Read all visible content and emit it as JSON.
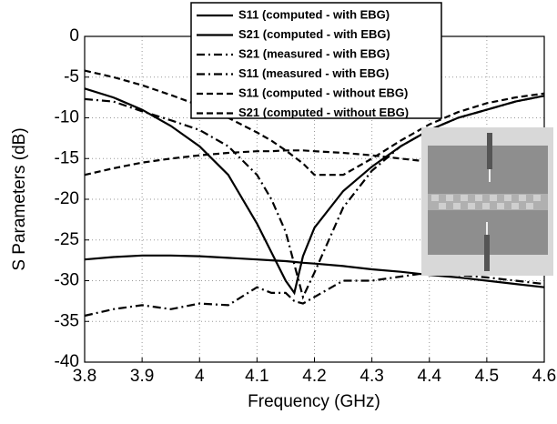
{
  "chart_data": {
    "type": "line",
    "xlabel": "Frequency (GHz)",
    "ylabel": "S Parameters (dB)",
    "x": [
      3.8,
      3.85,
      3.9,
      3.95,
      4.0,
      4.05,
      4.1,
      4.125,
      4.15,
      4.165,
      4.18,
      4.2,
      4.25,
      4.3,
      4.35,
      4.4,
      4.45,
      4.5,
      4.55,
      4.6
    ],
    "xlim": [
      3.8,
      4.6
    ],
    "xticks": [
      3.8,
      3.9,
      4,
      4.1,
      4.2,
      4.3,
      4.4,
      4.5,
      4.6
    ],
    "ylim": [
      -40,
      0
    ],
    "yticks": [
      0,
      -5,
      -10,
      -15,
      -20,
      -25,
      -30,
      -35,
      -40
    ],
    "grid": true,
    "legend": "top-center",
    "series": [
      {
        "name": "S11 (computed - with EBG)",
        "color": "#000000",
        "style": "solid",
        "values": [
          -6.4,
          -7.5,
          -9,
          -11,
          -13.5,
          -17,
          -23,
          -26.5,
          -30,
          -31.5,
          -27,
          -23.5,
          -19,
          -16,
          -13.5,
          -11.5,
          -10,
          -9,
          -8,
          -7.3
        ]
      },
      {
        "name": "S21 (computed - with EBG)",
        "color": "#000000",
        "style": "solid",
        "values": [
          -27.4,
          -27.1,
          -26.9,
          -26.9,
          -27,
          -27.2,
          -27.4,
          -27.5,
          -27.6,
          -27.7,
          -27.8,
          -27.9,
          -28.2,
          -28.6,
          -28.9,
          -29.3,
          -29.6,
          -30,
          -30.4,
          -30.8
        ]
      },
      {
        "name": "S21 (measured - with EBG)",
        "color": "#000000",
        "style": "dashdot",
        "values": [
          -34.3,
          -33.5,
          -33,
          -33.5,
          -32.8,
          -33,
          -30.8,
          -31.5,
          -31.5,
          -32.5,
          -32.8,
          -32,
          -30,
          -30,
          -29.5,
          -29,
          -29.3,
          -29.6,
          -30,
          -30.4
        ]
      },
      {
        "name": "S11 (measured - with EBG)",
        "color": "#000000",
        "style": "dashdot",
        "values": [
          -7.7,
          -8,
          -9.2,
          -10.3,
          -11.5,
          -13.5,
          -17,
          -20,
          -24,
          -28,
          -32,
          -29,
          -21,
          -16.5,
          -13.5,
          -11.5,
          -10,
          -9,
          -8,
          -7.3
        ]
      },
      {
        "name": "S11 (computed - without EBG)",
        "color": "#000000",
        "style": "dashed",
        "values": [
          -4.2,
          -5,
          -6,
          -7.2,
          -8.5,
          -10,
          -11.8,
          -12.8,
          -14,
          -14.8,
          -15.6,
          -17,
          -17,
          -15,
          -12.8,
          -10.8,
          -9.3,
          -8.2,
          -7.5,
          -7
        ]
      },
      {
        "name": "S21 (computed - without EBG)",
        "color": "#000000",
        "style": "dashed",
        "values": [
          -17,
          -16.2,
          -15.5,
          -15,
          -14.6,
          -14.3,
          -14.1,
          -14.1,
          -14,
          -14,
          -14,
          -14.1,
          -14.3,
          -14.6,
          -15,
          -15.4,
          -15.8,
          -16.2,
          -16.6,
          -17
        ]
      }
    ]
  }
}
